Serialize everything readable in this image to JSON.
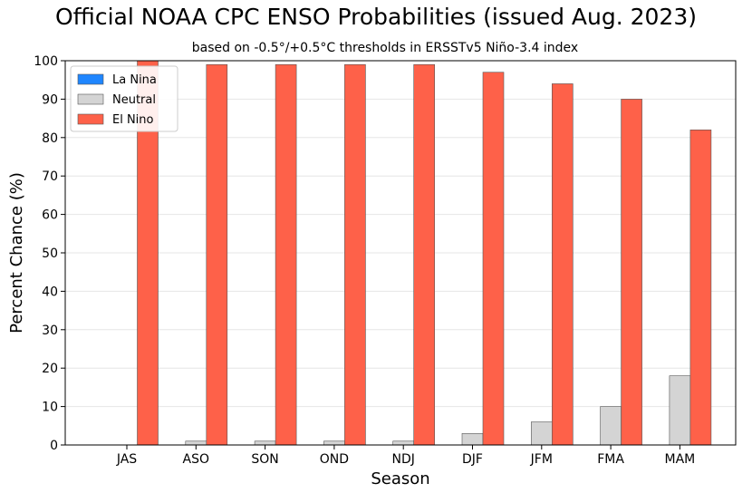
{
  "chart_data": {
    "type": "bar",
    "title": "Official NOAA CPC ENSO Probabilities (issued Aug. 2023)",
    "subtitle": "based on -0.5°/+0.5°C thresholds in ERSSTv5 Niño-3.4 index",
    "xlabel": "Season",
    "ylabel": "Percent Chance (%)",
    "ylim": [
      0,
      100
    ],
    "yticks": [
      0,
      10,
      20,
      30,
      40,
      50,
      60,
      70,
      80,
      90,
      100
    ],
    "grid": true,
    "legend_position": "top-left",
    "categories": [
      "JAS",
      "ASO",
      "SON",
      "OND",
      "NDJ",
      "DJF",
      "JFM",
      "FMA",
      "MAM"
    ],
    "series": [
      {
        "name": "La Nina",
        "color": "#1f86ff",
        "values": [
          0,
          0,
          0,
          0,
          0,
          0,
          0,
          0,
          0
        ]
      },
      {
        "name": "Neutral",
        "color": "#d4d4d4",
        "values": [
          0,
          1,
          1,
          1,
          1,
          3,
          6,
          10,
          18
        ]
      },
      {
        "name": "El Nino",
        "color": "#fe6149",
        "values": [
          100,
          99,
          99,
          99,
          99,
          97,
          94,
          90,
          82
        ]
      }
    ]
  }
}
